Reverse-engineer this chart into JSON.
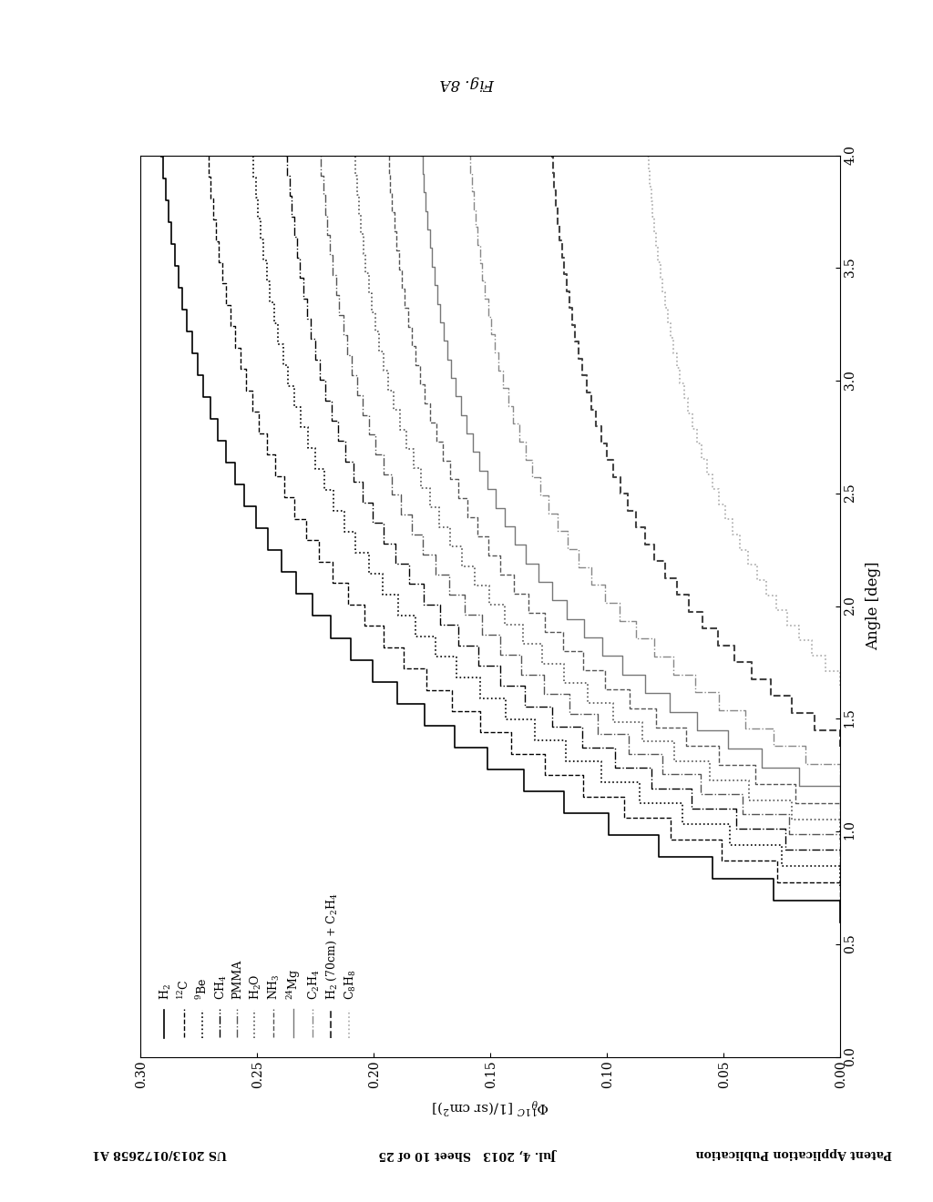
{
  "header_left": "Patent Application Publication",
  "header_mid": "Jul. 4, 2013   Sheet 10 of 25",
  "header_right": "US 2013/0172658 A1",
  "fig_label": "Fig. 8A",
  "phi_label": "$\\Phi_{\\theta}^{11C}$ [1/(sr cm$^2$)]",
  "angle_label": "Angle [deg]",
  "xlim": [
    0.0,
    0.3
  ],
  "ylim": [
    0.0,
    4.0
  ],
  "xticks": [
    0.0,
    0.05,
    0.1,
    0.15,
    0.2,
    0.25,
    0.3
  ],
  "yticks": [
    0.0,
    0.5,
    1.0,
    1.5,
    2.0,
    2.5,
    3.0,
    3.5,
    4.0
  ],
  "series": [
    {
      "label": "H$_2$",
      "linestyle": "solid",
      "color": "#000000",
      "lw": 1.2,
      "max_flux": 0.3,
      "start_angle": 0.6,
      "steepness": 3.5
    },
    {
      "label": "$^{12}$C",
      "linestyle": "dashed",
      "color": "#000000",
      "lw": 1.0,
      "max_flux": 0.28,
      "start_angle": 0.68,
      "steepness": 3.5
    },
    {
      "label": "$^{9}$Be",
      "linestyle": "dotted",
      "color": "#000000",
      "lw": 1.2,
      "max_flux": 0.26,
      "start_angle": 0.76,
      "steepness": 3.5
    },
    {
      "label": "CH$_4$",
      "linestyle": "dashdot",
      "color": "#000000",
      "lw": 1.0,
      "max_flux": 0.245,
      "start_angle": 0.83,
      "steepness": 3.5
    },
    {
      "label": "PMMA",
      "linestyle": "dashdot",
      "color": "#555555",
      "lw": 1.0,
      "max_flux": 0.23,
      "start_angle": 0.9,
      "steepness": 3.5
    },
    {
      "label": "H$_2$O",
      "linestyle": "dotted",
      "color": "#555555",
      "lw": 1.2,
      "max_flux": 0.215,
      "start_angle": 0.97,
      "steepness": 3.5
    },
    {
      "label": "NH$_3$",
      "linestyle": "dashed",
      "color": "#555555",
      "lw": 1.0,
      "max_flux": 0.2,
      "start_angle": 1.04,
      "steepness": 3.5
    },
    {
      "label": "$^{24}$Mg",
      "linestyle": "solid",
      "color": "#777777",
      "lw": 1.0,
      "max_flux": 0.185,
      "start_angle": 1.12,
      "steepness": 3.5
    },
    {
      "label": "C$_2$H$_4$",
      "linestyle": "dashdot",
      "color": "#888888",
      "lw": 1.0,
      "max_flux": 0.165,
      "start_angle": 1.22,
      "steepness": 3.3
    },
    {
      "label": "H$_2$ (70cm) + C$_2$H$_4$",
      "linestyle": "dashed",
      "color": "#444444",
      "lw": 1.5,
      "max_flux": 0.13,
      "start_angle": 1.38,
      "steepness": 3.0
    },
    {
      "label": "C$_8$H$_8$",
      "linestyle": "dotted",
      "color": "#aaaaaa",
      "lw": 1.2,
      "max_flux": 0.09,
      "start_angle": 1.65,
      "steepness": 2.5
    }
  ]
}
